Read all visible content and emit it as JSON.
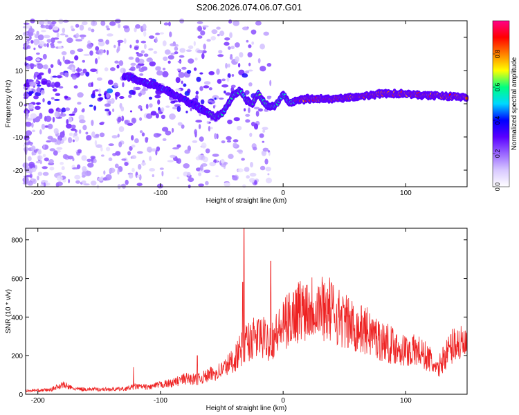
{
  "title": "S206.2026.074.06.07.G01",
  "colors": {
    "snr_line": "#ee2222",
    "axis": "#000000",
    "background": "#ffffff"
  },
  "chart_data": [
    {
      "type": "heatmap",
      "name": "spectrogram",
      "xlabel": "Height of straight line (km)",
      "ylabel": "Frequency (Hz)",
      "xlim": [
        -210,
        150
      ],
      "ylim": [
        -25,
        25
      ],
      "x_ticks": [
        -200,
        -100,
        0,
        100
      ],
      "y_ticks": [
        -20,
        -10,
        0,
        10,
        20
      ],
      "x_tick_labels": [
        "-200",
        "-100",
        "0",
        "100"
      ],
      "y_tick_labels": [
        "-20",
        "-10",
        "0",
        "10",
        "20"
      ],
      "ridge_frequency_track": {
        "x": [
          -125,
          -110,
          -100,
          -90,
          -80,
          -70,
          -60,
          -55,
          -50,
          -45,
          -40,
          -35,
          -30,
          -25,
          -20,
          -15,
          -10,
          -5,
          0,
          5,
          10,
          20,
          40,
          60,
          80,
          100,
          120,
          150
        ],
        "y": [
          8,
          6,
          5,
          3,
          1,
          -1,
          -3,
          -4,
          -3,
          0,
          3,
          4,
          1,
          0,
          3,
          0,
          -1,
          0,
          3,
          0,
          1,
          1.5,
          1.5,
          2,
          3,
          3,
          2.5,
          2
        ]
      },
      "colorbar": {
        "label": "Normalized spectral amplitude",
        "range": [
          0,
          1
        ],
        "ticks": [
          0.0,
          0.2,
          0.4,
          0.6,
          0.8
        ],
        "tick_labels": [
          "0.0",
          "0.2",
          "0.4",
          "0.6",
          "0.8"
        ],
        "colormap": [
          "#ffffff",
          "#d8c8ff",
          "#9966ff",
          "#5a00ff",
          "#0000ff",
          "#00d8ff",
          "#00ff80",
          "#ffff00",
          "#ff8000",
          "#ff0000",
          "#ff0088"
        ]
      }
    },
    {
      "type": "line",
      "name": "snr",
      "xlabel": "Height of straight line (km)",
      "ylabel": "SNR (10 * v/v)",
      "xlim": [
        -210,
        150
      ],
      "ylim": [
        0,
        860
      ],
      "x_ticks": [
        -200,
        -100,
        0,
        100
      ],
      "y_ticks": [
        0,
        200,
        400,
        600,
        800
      ],
      "x_tick_labels": [
        "-200",
        "-100",
        "0",
        "100"
      ],
      "y_tick_labels": [
        "0",
        "200",
        "400",
        "600",
        "800"
      ],
      "envelope": {
        "x": [
          -210,
          -190,
          -180,
          -170,
          -150,
          -130,
          -120,
          -110,
          -100,
          -90,
          -80,
          -70,
          -60,
          -50,
          -40,
          -30,
          -20,
          -10,
          0,
          10,
          20,
          30,
          40,
          50,
          60,
          70,
          80,
          90,
          100,
          110,
          120,
          125,
          130,
          140,
          150
        ],
        "y": [
          20,
          25,
          55,
          30,
          28,
          30,
          45,
          40,
          55,
          65,
          90,
          85,
          110,
          140,
          200,
          300,
          330,
          310,
          390,
          470,
          510,
          510,
          480,
          420,
          380,
          360,
          310,
          280,
          250,
          250,
          200,
          130,
          200,
          300,
          270
        ]
      },
      "spikes": [
        {
          "x": -32,
          "y": 860
        },
        {
          "x": -33,
          "y": 580
        },
        {
          "x": -10,
          "y": 690
        },
        {
          "x": -122,
          "y": 140
        },
        {
          "x": -70,
          "y": 200
        }
      ]
    }
  ]
}
